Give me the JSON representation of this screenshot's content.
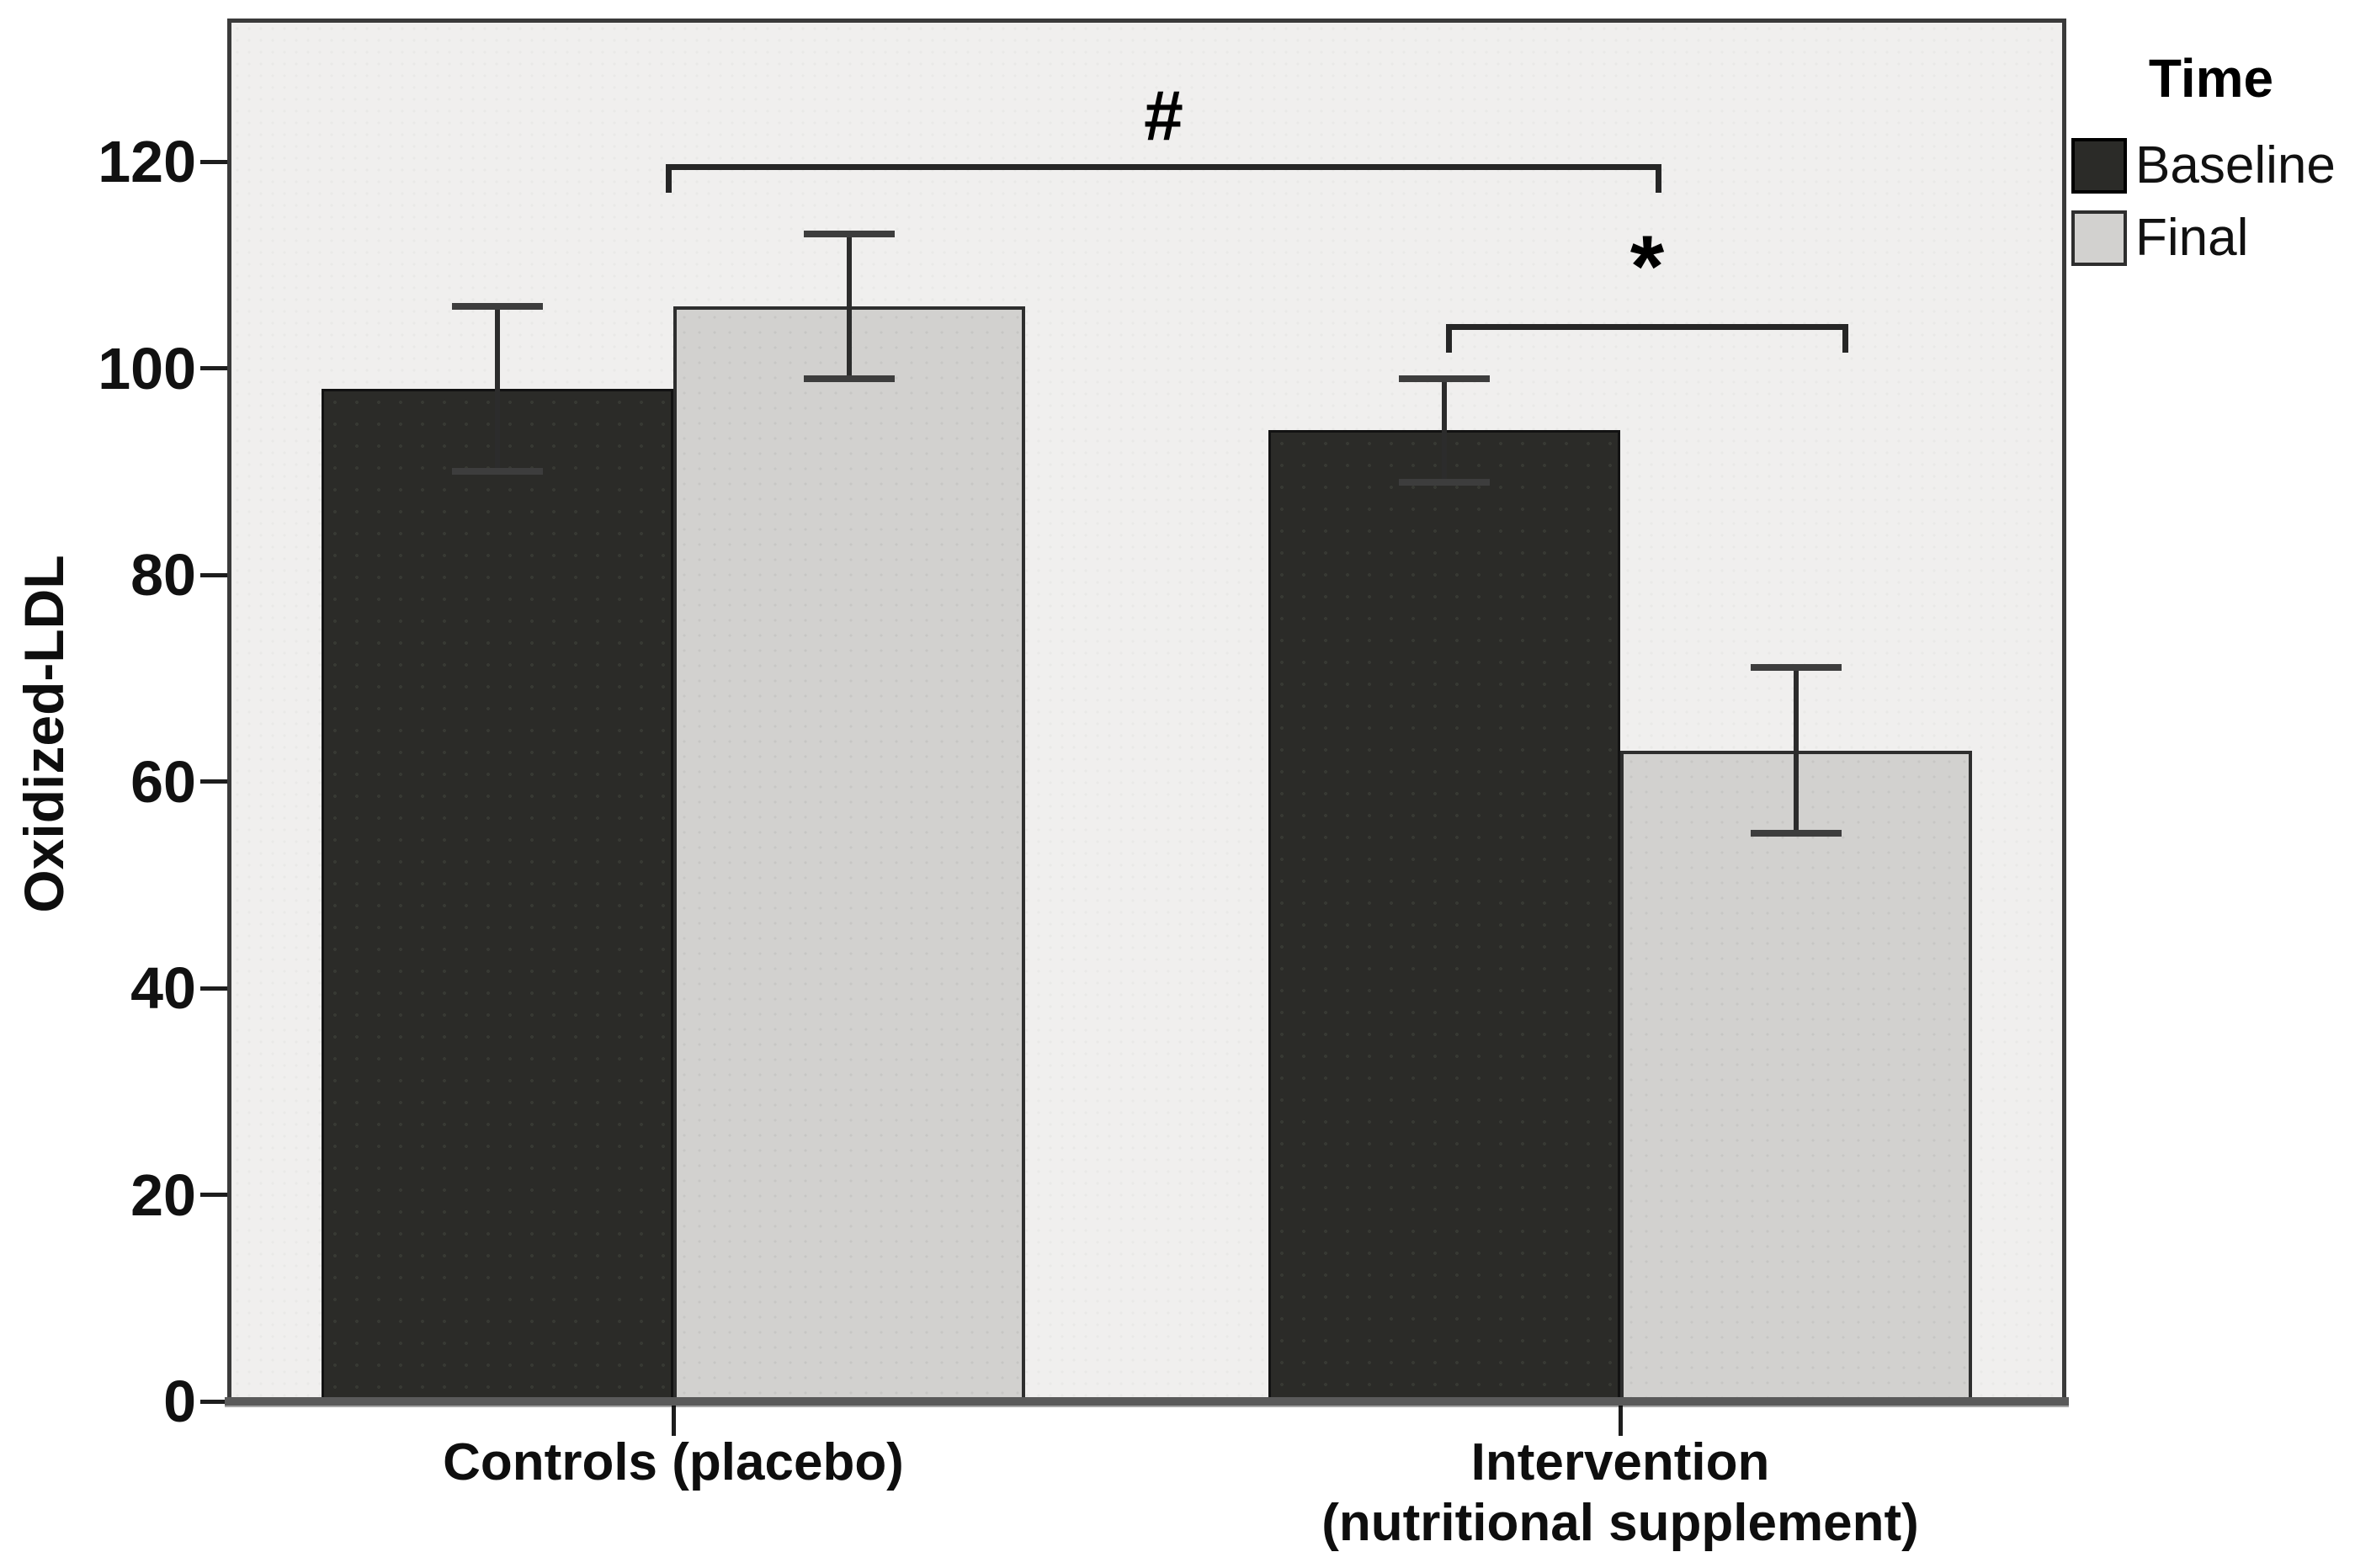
{
  "chart_data": {
    "type": "bar",
    "title": "",
    "xlabel": "",
    "ylabel": "Oxidized-LDL",
    "ylim": [
      0,
      120
    ],
    "y_ticks": [
      0,
      20,
      40,
      60,
      80,
      100,
      120
    ],
    "grid": false,
    "categories": [
      "Controls (placebo)",
      "Intervention\n(nutritional supplement)"
    ],
    "legend_title": "Time",
    "legend_position": "top-right-outside",
    "series": [
      {
        "name": "Baseline",
        "values": [
          98,
          94
        ],
        "error_low": [
          90,
          89
        ],
        "error_high": [
          106,
          99
        ],
        "color": "#2b2b28"
      },
      {
        "name": "Final",
        "values": [
          106,
          63
        ],
        "error_low": [
          99,
          55
        ],
        "error_high": [
          113,
          71
        ],
        "color": "#d2d1cf"
      }
    ],
    "annotations": [
      {
        "symbol": "#",
        "spans": [
          "Controls (placebo)",
          "Intervention (nutritional supplement)"
        ]
      },
      {
        "symbol": "*",
        "spans": [
          "Intervention Baseline",
          "Intervention Final"
        ]
      }
    ]
  }
}
